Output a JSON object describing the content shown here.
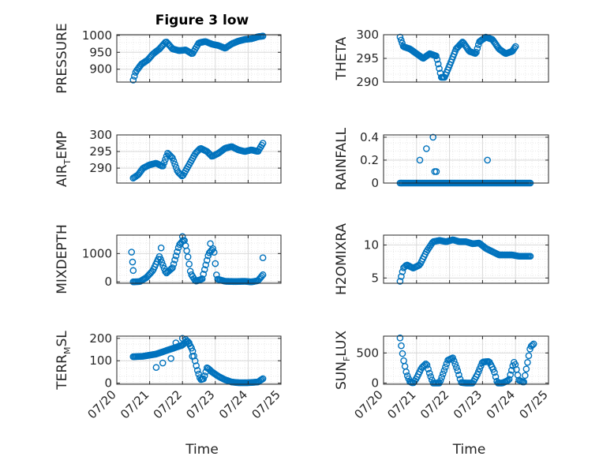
{
  "figure": {
    "title": "Figure 3 low"
  },
  "colors": {
    "marker": "#0072BD",
    "grid": "#d9d9d9",
    "axis": "#262626",
    "background": "#ffffff"
  },
  "chart_data": [
    {
      "type": "scatter",
      "id": "pressure",
      "title": "Figure 3 low",
      "ylabel": {
        "main": "PRESSURE",
        "sub": ""
      },
      "xlim": [
        0,
        5
      ],
      "ylim": [
        862,
        1002
      ],
      "yticks": [
        900,
        950,
        1000
      ],
      "ytick_labels": [
        "900",
        "950",
        "1000"
      ],
      "xticks": [
        0,
        1,
        2,
        3,
        4,
        5
      ],
      "xtick_labels": [],
      "xlabel": "",
      "grid": true,
      "knots": [
        [
          0.5,
          868
        ],
        [
          0.58,
          893
        ],
        [
          0.75,
          915
        ],
        [
          0.95,
          928
        ],
        [
          1.1,
          945
        ],
        [
          1.3,
          960
        ],
        [
          1.5,
          982
        ],
        [
          1.7,
          960
        ],
        [
          1.9,
          955
        ],
        [
          2.1,
          957
        ],
        [
          2.3,
          945
        ],
        [
          2.5,
          978
        ],
        [
          2.7,
          982
        ],
        [
          2.9,
          974
        ],
        [
          3.1,
          970
        ],
        [
          3.3,
          962
        ],
        [
          3.5,
          975
        ],
        [
          3.7,
          983
        ],
        [
          3.9,
          988
        ],
        [
          4.1,
          990
        ],
        [
          4.3,
          996
        ],
        [
          4.45,
          998
        ]
      ],
      "n": 110
    },
    {
      "type": "scatter",
      "id": "theta",
      "ylabel": {
        "main": "THETA",
        "sub": ""
      },
      "xlim": [
        0,
        5
      ],
      "ylim": [
        290,
        300
      ],
      "yticks": [
        290,
        295,
        300
      ],
      "ytick_labels": [
        "290",
        "295",
        "300"
      ],
      "xticks": [
        0,
        1,
        2,
        3,
        4,
        5
      ],
      "xtick_labels": [],
      "xlabel": "",
      "grid": true,
      "knots": [
        [
          0.5,
          299.5
        ],
        [
          0.6,
          297.5
        ],
        [
          0.8,
          297
        ],
        [
          1.0,
          296
        ],
        [
          1.2,
          295
        ],
        [
          1.4,
          296
        ],
        [
          1.6,
          295.5
        ],
        [
          1.75,
          291
        ],
        [
          1.85,
          291
        ],
        [
          2.0,
          293.5
        ],
        [
          2.2,
          297
        ],
        [
          2.4,
          298.5
        ],
        [
          2.6,
          296.5
        ],
        [
          2.8,
          296
        ],
        [
          2.9,
          298.5
        ],
        [
          3.1,
          299.5
        ],
        [
          3.3,
          299
        ],
        [
          3.5,
          297
        ],
        [
          3.7,
          296
        ],
        [
          3.9,
          296.5
        ],
        [
          4.0,
          297.5
        ]
      ],
      "n": 110
    },
    {
      "type": "scatter",
      "id": "air_temp",
      "ylabel": {
        "main": "AIR",
        "sub": "T",
        "rest": "EMP"
      },
      "xlim": [
        0,
        5
      ],
      "ylim": [
        285.5,
        300
      ],
      "yticks": [
        290,
        295,
        300
      ],
      "ytick_labels": [
        "290",
        "295",
        "300"
      ],
      "xticks": [
        0,
        1,
        2,
        3,
        4,
        5
      ],
      "xtick_labels": [],
      "xlabel": "",
      "grid": true,
      "knots": [
        [
          0.5,
          287
        ],
        [
          0.65,
          288
        ],
        [
          0.8,
          290
        ],
        [
          1.0,
          291
        ],
        [
          1.2,
          291.5
        ],
        [
          1.4,
          290.5
        ],
        [
          1.55,
          294.5
        ],
        [
          1.7,
          293
        ],
        [
          1.85,
          289
        ],
        [
          2.0,
          287.5
        ],
        [
          2.2,
          291
        ],
        [
          2.4,
          294.5
        ],
        [
          2.55,
          296
        ],
        [
          2.75,
          295
        ],
        [
          2.9,
          293.5
        ],
        [
          3.1,
          294.5
        ],
        [
          3.3,
          296
        ],
        [
          3.5,
          296.5
        ],
        [
          3.7,
          295.5
        ],
        [
          3.9,
          295
        ],
        [
          4.1,
          295.5
        ],
        [
          4.3,
          295
        ],
        [
          4.45,
          297.5
        ]
      ],
      "n": 110
    },
    {
      "type": "scatter",
      "id": "rainfall",
      "ylabel": {
        "main": "RAINFALL",
        "sub": ""
      },
      "xlim": [
        0,
        5
      ],
      "ylim": [
        0,
        0.42
      ],
      "yticks": [
        0,
        0.2,
        0.4
      ],
      "ytick_labels": [
        "0",
        "0.2",
        "0.4"
      ],
      "xticks": [
        0,
        1,
        2,
        3,
        4,
        5
      ],
      "xtick_labels": [],
      "xlabel": "",
      "grid": true,
      "knots": [
        [
          0.5,
          0
        ],
        [
          4.45,
          0
        ]
      ],
      "n": 110,
      "extra_points": [
        [
          1.1,
          0.2
        ],
        [
          1.3,
          0.3
        ],
        [
          1.5,
          0.4
        ],
        [
          1.55,
          0.1
        ],
        [
          1.6,
          0.1
        ],
        [
          3.15,
          0.2
        ]
      ]
    },
    {
      "type": "scatter",
      "id": "mixdepth",
      "ylabel": {
        "main": "MIXDEPTH",
        "sub": ""
      },
      "xlim": [
        0,
        5
      ],
      "ylim": [
        -50,
        1650
      ],
      "yticks": [
        0,
        1000
      ],
      "ytick_labels": [
        "0",
        "1000"
      ],
      "xticks": [
        0,
        1,
        2,
        3,
        4,
        5
      ],
      "xtick_labels": [],
      "xlabel": "",
      "grid": true,
      "knots": [
        [
          0.5,
          0
        ],
        [
          0.7,
          10
        ],
        [
          0.9,
          150
        ],
        [
          1.1,
          400
        ],
        [
          1.3,
          900
        ],
        [
          1.5,
          300
        ],
        [
          1.7,
          500
        ],
        [
          1.9,
          1300
        ],
        [
          2.05,
          1500
        ],
        [
          2.15,
          1000
        ],
        [
          2.25,
          300
        ],
        [
          2.4,
          20
        ],
        [
          2.6,
          100
        ],
        [
          2.8,
          1000
        ],
        [
          2.95,
          1200
        ],
        [
          3.05,
          100
        ],
        [
          3.3,
          20
        ],
        [
          3.6,
          10
        ],
        [
          3.9,
          20
        ],
        [
          4.1,
          0
        ],
        [
          4.3,
          40
        ],
        [
          4.45,
          250
        ]
      ],
      "n": 110,
      "extra_points": [
        [
          0.45,
          1050
        ],
        [
          0.48,
          700
        ],
        [
          0.5,
          400
        ],
        [
          1.35,
          1200
        ],
        [
          2.0,
          1600
        ],
        [
          2.85,
          1350
        ],
        [
          4.45,
          850
        ]
      ]
    },
    {
      "type": "scatter",
      "id": "h2omixra",
      "ylabel": {
        "main": "H2OMIXRA",
        "sub": ""
      },
      "xlim": [
        0,
        5
      ],
      "ylim": [
        4.2,
        11.5
      ],
      "yticks": [
        5,
        10
      ],
      "ytick_labels": [
        "5",
        "10"
      ],
      "xticks": [
        0,
        1,
        2,
        3,
        4,
        5
      ],
      "xtick_labels": [],
      "xlabel": "",
      "grid": true,
      "knots": [
        [
          0.5,
          4.5
        ],
        [
          0.6,
          6.5
        ],
        [
          0.7,
          7.0
        ],
        [
          0.9,
          6.5
        ],
        [
          1.1,
          7.0
        ],
        [
          1.3,
          9
        ],
        [
          1.5,
          10.5
        ],
        [
          1.7,
          10.7
        ],
        [
          1.9,
          10.5
        ],
        [
          2.1,
          10.8
        ],
        [
          2.3,
          10.5
        ],
        [
          2.5,
          10.5
        ],
        [
          2.7,
          10.2
        ],
        [
          2.9,
          10.3
        ],
        [
          3.1,
          9.5
        ],
        [
          3.3,
          9
        ],
        [
          3.5,
          8.5
        ],
        [
          3.7,
          8.5
        ],
        [
          3.9,
          8.5
        ],
        [
          4.1,
          8.3
        ],
        [
          4.45,
          8.3
        ]
      ],
      "n": 110
    },
    {
      "type": "scatter",
      "id": "terr_msl",
      "ylabel": {
        "main": "TERR",
        "sub": "M",
        "rest": "SL"
      },
      "xlim": [
        0,
        5
      ],
      "ylim": [
        -5,
        210
      ],
      "yticks": [
        0,
        100,
        200
      ],
      "ytick_labels": [
        "0",
        "100",
        "200"
      ],
      "xticks": [
        0,
        1,
        2,
        3,
        4,
        5
      ],
      "xtick_labels": [
        "07/20",
        "07/21",
        "07/22",
        "07/23",
        "07/24",
        "07/25"
      ],
      "xlabel": "Time",
      "grid": true,
      "knots": [
        [
          0.5,
          118
        ],
        [
          0.8,
          120
        ],
        [
          1.0,
          125
        ],
        [
          1.2,
          130
        ],
        [
          1.4,
          140
        ],
        [
          1.6,
          150
        ],
        [
          1.8,
          160
        ],
        [
          2.0,
          170
        ],
        [
          2.15,
          190
        ],
        [
          2.3,
          150
        ],
        [
          2.45,
          60
        ],
        [
          2.55,
          15
        ],
        [
          2.65,
          20
        ],
        [
          2.75,
          70
        ],
        [
          2.9,
          50
        ],
        [
          3.1,
          30
        ],
        [
          3.3,
          15
        ],
        [
          3.5,
          5
        ],
        [
          3.7,
          2
        ],
        [
          4.0,
          2
        ],
        [
          4.3,
          5
        ],
        [
          4.45,
          20
        ]
      ],
      "n": 110,
      "extra_points": [
        [
          1.2,
          70
        ],
        [
          1.4,
          90
        ],
        [
          1.65,
          110
        ],
        [
          1.8,
          180
        ],
        [
          2.0,
          200
        ],
        [
          2.1,
          195
        ],
        [
          2.2,
          180
        ],
        [
          2.3,
          120
        ]
      ]
    },
    {
      "type": "scatter",
      "id": "sun_flux",
      "ylabel": {
        "main": "SUN",
        "sub": "F",
        "rest": "LUX"
      },
      "xlim": [
        0,
        5
      ],
      "ylim": [
        -20,
        780
      ],
      "yticks": [
        0,
        500
      ],
      "ytick_labels": [
        "0",
        "500"
      ],
      "xticks": [
        0,
        1,
        2,
        3,
        4,
        5
      ],
      "xtick_labels": [
        "07/20",
        "07/21",
        "07/22",
        "07/23",
        "07/24",
        "07/25"
      ],
      "xlabel": "Time",
      "grid": true,
      "knots": [
        [
          0.5,
          750
        ],
        [
          0.6,
          400
        ],
        [
          0.7,
          150
        ],
        [
          0.8,
          20
        ],
        [
          0.9,
          0
        ],
        [
          1.0,
          80
        ],
        [
          1.15,
          250
        ],
        [
          1.3,
          330
        ],
        [
          1.4,
          150
        ],
        [
          1.5,
          0
        ],
        [
          1.7,
          0
        ],
        [
          1.8,
          150
        ],
        [
          1.95,
          380
        ],
        [
          2.1,
          420
        ],
        [
          2.25,
          200
        ],
        [
          2.35,
          10
        ],
        [
          2.5,
          0
        ],
        [
          2.7,
          0
        ],
        [
          2.85,
          150
        ],
        [
          3.0,
          350
        ],
        [
          3.2,
          360
        ],
        [
          3.35,
          200
        ],
        [
          3.45,
          0
        ],
        [
          3.6,
          0
        ],
        [
          3.8,
          50
        ],
        [
          3.95,
          350
        ],
        [
          4.0,
          300
        ],
        [
          4.1,
          50
        ],
        [
          4.25,
          10
        ],
        [
          4.35,
          300
        ],
        [
          4.45,
          600
        ],
        [
          4.55,
          650
        ]
      ],
      "n": 110
    }
  ]
}
